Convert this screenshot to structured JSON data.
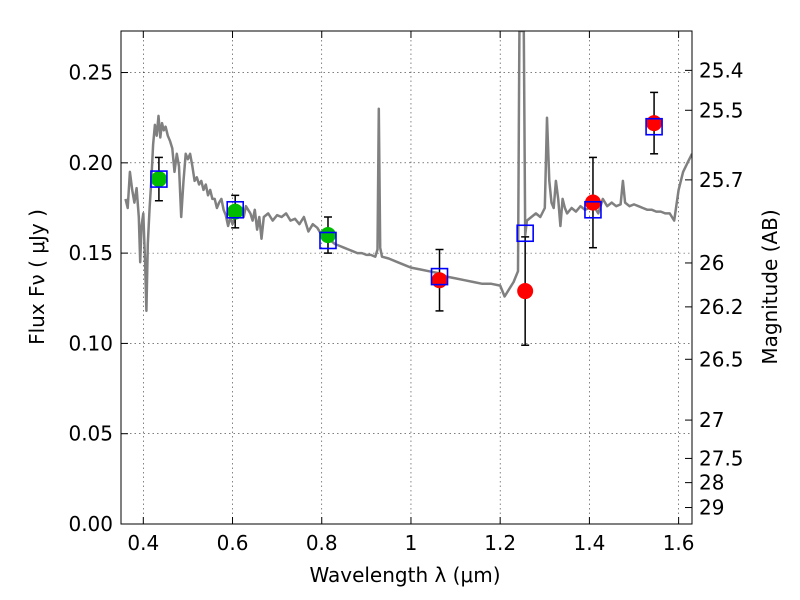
{
  "chart_data": {
    "type": "scatter",
    "xlabel": "Wavelength  λ (μm)",
    "ylabel": "Flux  Fν  ( μJy )",
    "y2label": "Magnitude (AB)",
    "xlim": [
      0.35,
      1.63
    ],
    "ylim": [
      0.0,
      0.273
    ],
    "grid": true,
    "x_ticks": [
      {
        "value": 0.4,
        "label": "0.4"
      },
      {
        "value": 0.6,
        "label": "0.6"
      },
      {
        "value": 0.8,
        "label": "0.8"
      },
      {
        "value": 1.0,
        "label": "1"
      },
      {
        "value": 1.2,
        "label": "1.2"
      },
      {
        "value": 1.4,
        "label": "1.4"
      },
      {
        "value": 1.6,
        "label": "1.6"
      }
    ],
    "y_ticks": [
      {
        "value": 0.0,
        "label": "0.00"
      },
      {
        "value": 0.05,
        "label": "0.05"
      },
      {
        "value": 0.1,
        "label": "0.10"
      },
      {
        "value": 0.15,
        "label": "0.15"
      },
      {
        "value": 0.2,
        "label": "0.20"
      },
      {
        "value": 0.25,
        "label": "0.25"
      }
    ],
    "y2_ticks": [
      {
        "value": 25.4,
        "label": "25.4"
      },
      {
        "value": 25.5,
        "label": "25.5"
      },
      {
        "value": 25.7,
        "label": "25.7"
      },
      {
        "value": 26.0,
        "label": "26"
      },
      {
        "value": 26.2,
        "label": "26.2"
      },
      {
        "value": 26.5,
        "label": "26.5"
      },
      {
        "value": 27.0,
        "label": "27"
      },
      {
        "value": 27.5,
        "label": "27.5"
      },
      {
        "value": 28.0,
        "label": "28"
      },
      {
        "value": 29.0,
        "label": "29"
      }
    ],
    "model_spectrum": {
      "color": "#808080",
      "points": [
        [
          0.36,
          0.18
        ],
        [
          0.365,
          0.175
        ],
        [
          0.37,
          0.195
        ],
        [
          0.375,
          0.185
        ],
        [
          0.38,
          0.178
        ],
        [
          0.385,
          0.186
        ],
        [
          0.39,
          0.17
        ],
        [
          0.393,
          0.145
        ],
        [
          0.396,
          0.165
        ],
        [
          0.4,
          0.172
        ],
        [
          0.404,
          0.145
        ],
        [
          0.407,
          0.118
        ],
        [
          0.41,
          0.155
        ],
        [
          0.414,
          0.175
        ],
        [
          0.418,
          0.19
        ],
        [
          0.422,
          0.21
        ],
        [
          0.426,
          0.221
        ],
        [
          0.43,
          0.215
        ],
        [
          0.434,
          0.226
        ],
        [
          0.438,
          0.214
        ],
        [
          0.442,
          0.222
        ],
        [
          0.446,
          0.218
        ],
        [
          0.45,
          0.22
        ],
        [
          0.455,
          0.215
        ],
        [
          0.46,
          0.212
        ],
        [
          0.465,
          0.208
        ],
        [
          0.47,
          0.195
        ],
        [
          0.475,
          0.205
        ],
        [
          0.48,
          0.198
        ],
        [
          0.485,
          0.17
        ],
        [
          0.49,
          0.19
        ],
        [
          0.495,
          0.205
        ],
        [
          0.5,
          0.202
        ],
        [
          0.505,
          0.205
        ],
        [
          0.51,
          0.198
        ],
        [
          0.515,
          0.19
        ],
        [
          0.52,
          0.192
        ],
        [
          0.525,
          0.188
        ],
        [
          0.53,
          0.19
        ],
        [
          0.535,
          0.185
        ],
        [
          0.54,
          0.188
        ],
        [
          0.545,
          0.182
        ],
        [
          0.55,
          0.185
        ],
        [
          0.555,
          0.18
        ],
        [
          0.56,
          0.18
        ],
        [
          0.565,
          0.175
        ],
        [
          0.57,
          0.178
        ],
        [
          0.575,
          0.18
        ],
        [
          0.58,
          0.174
        ],
        [
          0.585,
          0.171
        ],
        [
          0.59,
          0.165
        ],
        [
          0.595,
          0.17
        ],
        [
          0.6,
          0.166
        ],
        [
          0.61,
          0.172
        ],
        [
          0.62,
          0.175
        ],
        [
          0.625,
          0.17
        ],
        [
          0.63,
          0.176
        ],
        [
          0.64,
          0.172
        ],
        [
          0.645,
          0.168
        ],
        [
          0.65,
          0.174
        ],
        [
          0.655,
          0.163
        ],
        [
          0.66,
          0.17
        ],
        [
          0.665,
          0.158
        ],
        [
          0.67,
          0.17
        ],
        [
          0.68,
          0.172
        ],
        [
          0.69,
          0.168
        ],
        [
          0.7,
          0.171
        ],
        [
          0.71,
          0.17
        ],
        [
          0.72,
          0.172
        ],
        [
          0.73,
          0.168
        ],
        [
          0.74,
          0.169
        ],
        [
          0.75,
          0.166
        ],
        [
          0.76,
          0.17
        ],
        [
          0.77,
          0.162
        ],
        [
          0.78,
          0.166
        ],
        [
          0.79,
          0.164
        ],
        [
          0.8,
          0.16
        ],
        [
          0.81,
          0.158
        ],
        [
          0.82,
          0.157
        ],
        [
          0.83,
          0.155
        ],
        [
          0.84,
          0.154
        ],
        [
          0.85,
          0.153
        ],
        [
          0.86,
          0.152
        ],
        [
          0.87,
          0.151
        ],
        [
          0.88,
          0.15
        ],
        [
          0.89,
          0.15
        ],
        [
          0.9,
          0.149
        ],
        [
          0.91,
          0.149
        ],
        [
          0.92,
          0.148
        ],
        [
          0.925,
          0.152
        ],
        [
          0.928,
          0.23
        ],
        [
          0.931,
          0.153
        ],
        [
          0.935,
          0.148
        ],
        [
          0.95,
          0.147
        ],
        [
          0.97,
          0.145
        ],
        [
          0.99,
          0.143
        ],
        [
          1.0,
          0.142
        ],
        [
          1.02,
          0.141
        ],
        [
          1.04,
          0.14
        ],
        [
          1.06,
          0.139
        ],
        [
          1.08,
          0.137
        ],
        [
          1.1,
          0.136
        ],
        [
          1.12,
          0.135
        ],
        [
          1.14,
          0.134
        ],
        [
          1.16,
          0.133
        ],
        [
          1.18,
          0.133
        ],
        [
          1.2,
          0.132
        ],
        [
          1.21,
          0.126
        ],
        [
          1.22,
          0.13
        ],
        [
          1.23,
          0.134
        ],
        [
          1.24,
          0.14
        ],
        [
          1.243,
          0.273
        ],
        [
          1.253,
          0.273
        ],
        [
          1.256,
          0.16
        ],
        [
          1.26,
          0.168
        ],
        [
          1.27,
          0.17
        ],
        [
          1.28,
          0.172
        ],
        [
          1.29,
          0.17
        ],
        [
          1.3,
          0.175
        ],
        [
          1.305,
          0.225
        ],
        [
          1.31,
          0.19
        ],
        [
          1.315,
          0.178
        ],
        [
          1.32,
          0.175
        ],
        [
          1.325,
          0.19
        ],
        [
          1.33,
          0.18
        ],
        [
          1.335,
          0.165
        ],
        [
          1.34,
          0.18
        ],
        [
          1.345,
          0.175
        ],
        [
          1.35,
          0.172
        ],
        [
          1.36,
          0.175
        ],
        [
          1.37,
          0.173
        ],
        [
          1.38,
          0.176
        ],
        [
          1.39,
          0.174
        ],
        [
          1.4,
          0.175
        ],
        [
          1.41,
          0.176
        ],
        [
          1.42,
          0.172
        ],
        [
          1.43,
          0.18
        ],
        [
          1.44,
          0.176
        ],
        [
          1.45,
          0.178
        ],
        [
          1.46,
          0.176
        ],
        [
          1.47,
          0.177
        ],
        [
          1.475,
          0.19
        ],
        [
          1.48,
          0.178
        ],
        [
          1.49,
          0.176
        ],
        [
          1.5,
          0.177
        ],
        [
          1.51,
          0.176
        ],
        [
          1.52,
          0.175
        ],
        [
          1.53,
          0.174
        ],
        [
          1.54,
          0.174
        ],
        [
          1.55,
          0.173
        ],
        [
          1.56,
          0.173
        ],
        [
          1.57,
          0.172
        ],
        [
          1.58,
          0.172
        ],
        [
          1.59,
          0.168
        ],
        [
          1.6,
          0.185
        ],
        [
          1.61,
          0.195
        ],
        [
          1.62,
          0.2
        ],
        [
          1.63,
          0.205
        ]
      ]
    },
    "model_fluxes": {
      "color": "#0000ff",
      "points": [
        {
          "x": 0.435,
          "y": 0.191
        },
        {
          "x": 0.606,
          "y": 0.174
        },
        {
          "x": 0.814,
          "y": 0.157
        },
        {
          "x": 1.064,
          "y": 0.137
        },
        {
          "x": 1.256,
          "y": 0.161
        },
        {
          "x": 1.408,
          "y": 0.174
        },
        {
          "x": 1.545,
          "y": 0.22
        }
      ]
    },
    "optical_points": {
      "color": "#00bb00",
      "points": [
        {
          "x": 0.435,
          "y": 0.191,
          "err": 0.012
        },
        {
          "x": 0.606,
          "y": 0.173,
          "err": 0.009
        },
        {
          "x": 0.814,
          "y": 0.16,
          "err": 0.01
        }
      ]
    },
    "nir_points": {
      "color": "#ff0000",
      "points": [
        {
          "x": 1.064,
          "y": 0.135,
          "err": 0.017
        },
        {
          "x": 1.256,
          "y": 0.129,
          "err": 0.03
        },
        {
          "x": 1.408,
          "y": 0.178,
          "err": 0.025
        },
        {
          "x": 1.545,
          "y": 0.222,
          "err": 0.017
        }
      ]
    }
  }
}
